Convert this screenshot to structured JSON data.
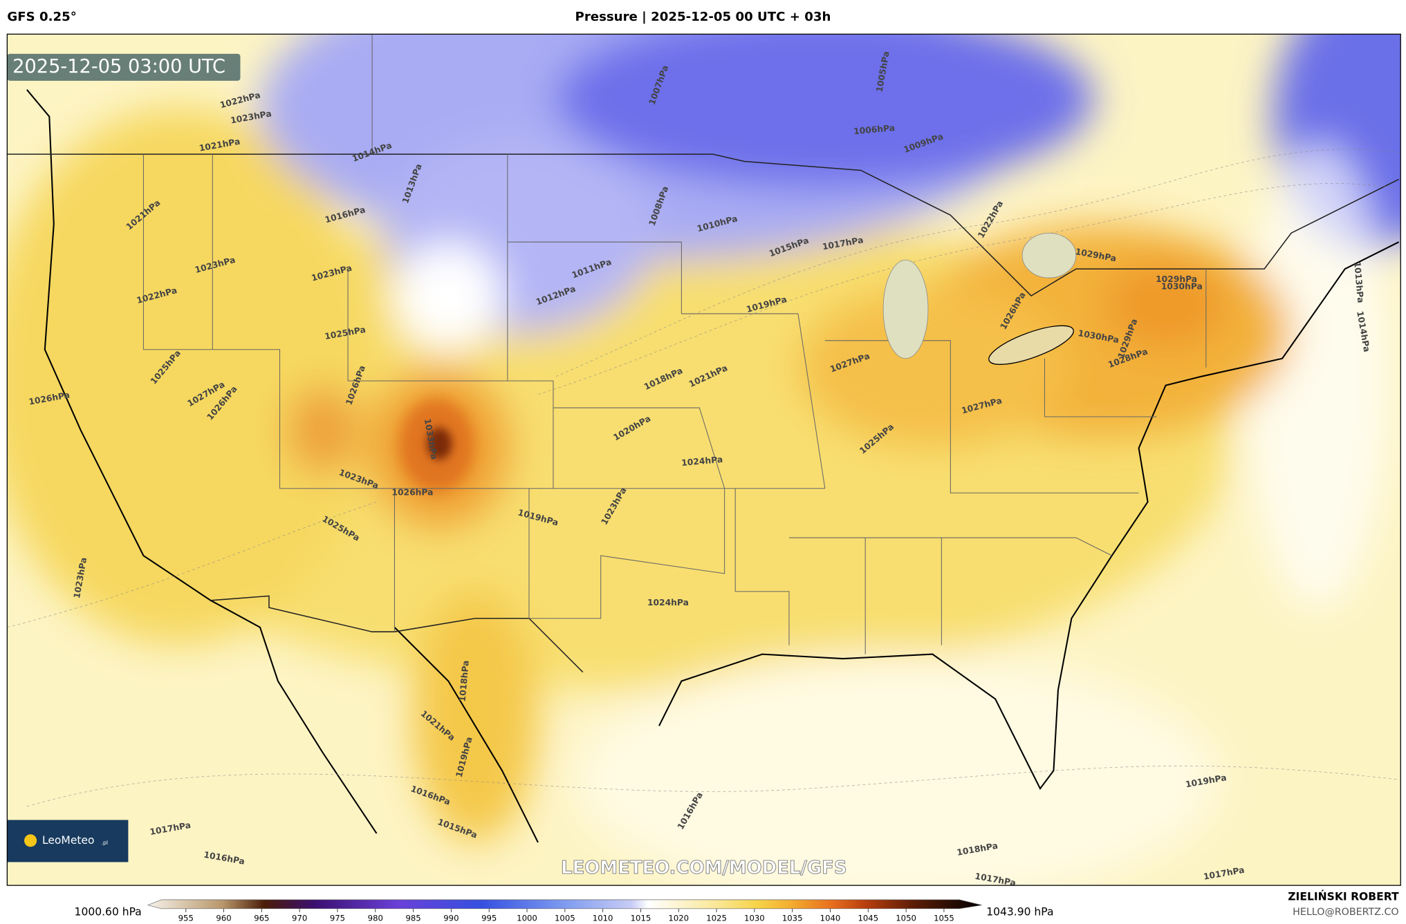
{
  "header": {
    "model": "GFS 0.25°",
    "title": "Pressure | 2025-12-05 00 UTC + 03h"
  },
  "map": {
    "timestamp": "2025-12-05 03:00 UTC",
    "watermark": "LEOMETEO.COM/MODEL/GFS",
    "logo": "LeoMeteo",
    "logo_suffix": ".pl",
    "isobar_labels": [
      "1022hPa",
      "1023hPa",
      "1021hPa",
      "1014hPa",
      "1013hPa",
      "1016hPa",
      "1021hPa",
      "1023hPa",
      "1022hPa",
      "1023hPa",
      "1025hPa",
      "1011hPa",
      "1012hPa",
      "1008hPa",
      "1010hPa",
      "1007hPa",
      "1006hPa",
      "1009hPa",
      "1005hPa",
      "1015hPa",
      "1017hPa",
      "1019hPa",
      "1022hPa",
      "1029hPa",
      "1029hPa",
      "1030hPa",
      "1026hPa",
      "1030hPa",
      "1029hPa",
      "1028hPa",
      "1027hPa",
      "1027hPa",
      "1025hPa",
      "1021hPa",
      "1018hPa",
      "1020hPa",
      "1024hPa",
      "1023hPa",
      "1024hPa",
      "1019hPa",
      "1026hPa",
      "1023hPa",
      "1027hPa",
      "1025hPa",
      "1026hPa",
      "1026hPa",
      "1026hPa",
      "1033hPa",
      "1023hPa",
      "1025hPa",
      "1018hPa",
      "1019hPa",
      "1021hPa",
      "1016hPa",
      "1015hPa",
      "1017hPa",
      "1016hPa",
      "1016hPa",
      "1019hPa",
      "1018hPa",
      "1017hPa",
      "1017hPa",
      "1014hPa",
      "1013hPa"
    ]
  },
  "colorbar": {
    "min_label": "1000.60 hPa",
    "max_label": "1043.90 hPa",
    "range": [
      950,
      1060
    ],
    "ticks": [
      955,
      960,
      965,
      970,
      975,
      980,
      985,
      990,
      995,
      1000,
      1005,
      1010,
      1015,
      1020,
      1025,
      1030,
      1035,
      1040,
      1045,
      1050,
      1055
    ]
  },
  "credits": {
    "author": "ZIELIŃSKI ROBERT",
    "email": "HELLO@ROBERTZ.CO"
  }
}
